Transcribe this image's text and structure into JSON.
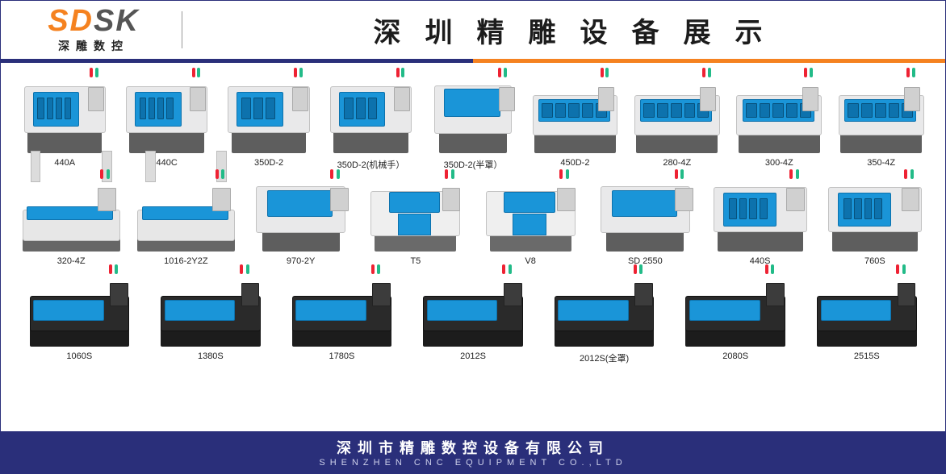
{
  "logo": {
    "main_orange": "SD",
    "main_grey": "SK",
    "sub": "深雕数控"
  },
  "title": "深圳精雕设备展示",
  "accent": {
    "left_color": "#2a2f7a",
    "right_color": "#f58220"
  },
  "products_row1": [
    {
      "label": "440A",
      "variant": "v-small",
      "windows": 4
    },
    {
      "label": "440C",
      "variant": "v-small",
      "windows": 4
    },
    {
      "label": "350D-2",
      "variant": "v-small",
      "windows": 3
    },
    {
      "label": "350D-2(机械手）",
      "variant": "v-small",
      "windows": 3
    },
    {
      "label": "350D-2(半罩）",
      "variant": "v-mid",
      "windows": 0
    },
    {
      "label": "450D-2",
      "variant": "v-wide",
      "windows": 5
    },
    {
      "label": "280-4Z",
      "variant": "v-wide",
      "windows": 5
    },
    {
      "label": "300-4Z",
      "variant": "v-wide",
      "windows": 5
    },
    {
      "label": "350-4Z",
      "variant": "v-wide",
      "windows": 5
    }
  ],
  "products_row2": [
    {
      "label": "320-4Z",
      "variant": "v-gantry",
      "windows": 0
    },
    {
      "label": "1016-2Y2Z",
      "variant": "v-gantry",
      "windows": 0
    },
    {
      "label": "970-2Y",
      "variant": "v-mid",
      "windows": 0
    },
    {
      "label": "T5",
      "variant": "v-open",
      "windows": 0
    },
    {
      "label": "V8",
      "variant": "v-open",
      "windows": 0
    },
    {
      "label": "SD 2550",
      "variant": "v-mid",
      "windows": 0
    },
    {
      "label": "440S",
      "variant": "v-small",
      "windows": 4
    },
    {
      "label": "760S",
      "variant": "v-small",
      "windows": 4
    }
  ],
  "products_row3": [
    {
      "label": "1060S",
      "variant": "v-long v-dark",
      "windows": 0
    },
    {
      "label": "1380S",
      "variant": "v-long v-dark",
      "windows": 0
    },
    {
      "label": "1780S",
      "variant": "v-long v-dark",
      "windows": 0
    },
    {
      "label": "2012S",
      "variant": "v-long v-dark",
      "windows": 0
    },
    {
      "label": "2012S(全罩)",
      "variant": "v-long v-dark",
      "windows": 0
    },
    {
      "label": "2080S",
      "variant": "v-long v-dark",
      "windows": 0
    },
    {
      "label": "2515S",
      "variant": "v-long v-dark",
      "windows": 0
    }
  ],
  "footer": {
    "cn": "深圳市精雕数控设备有限公司",
    "en": "SHENZHEN CNC EQUIPMENT CO.,LTD"
  },
  "colors": {
    "brand_blue": "#1a95d8",
    "brand_navy": "#2a2f7a",
    "brand_orange": "#f58220",
    "machine_body": "#e9e9ea",
    "machine_base": "#5e5e5e"
  }
}
